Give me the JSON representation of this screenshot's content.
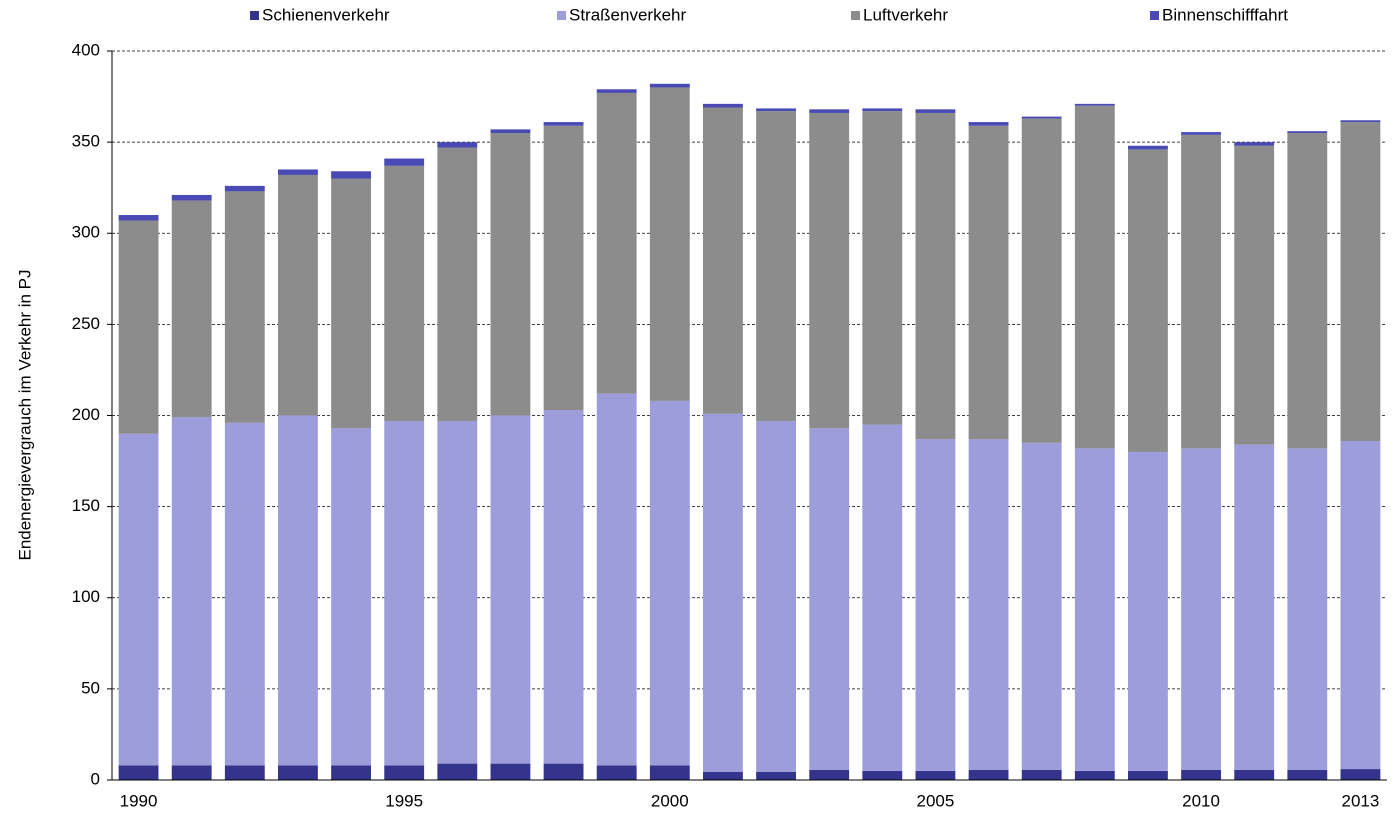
{
  "chart_data": {
    "type": "stacked-bar",
    "y_label": "Endenergievergrauch im Verkehr in PJ",
    "categories": [
      "1990",
      null,
      null,
      null,
      null,
      "1995",
      null,
      null,
      null,
      null,
      "2000",
      null,
      null,
      null,
      null,
      "2005",
      null,
      null,
      null,
      null,
      "2010",
      null,
      null,
      "2013"
    ],
    "series": [
      {
        "name": "Schienenverkehr",
        "color": "#34348c",
        "values": [
          8,
          8,
          8,
          8,
          8,
          8,
          9,
          9,
          9,
          8,
          8,
          4.5,
          4.5,
          5.5,
          5,
          5,
          5.5,
          5.5,
          5,
          5,
          5.5,
          5.5,
          5.5,
          6
        ]
      },
      {
        "name": "Straßenverkehr",
        "color": "#9d9ddc",
        "values": [
          182,
          191,
          188,
          192,
          185,
          189,
          188,
          191,
          194,
          204,
          200,
          196.5,
          192.5,
          187.5,
          190,
          182,
          181.5,
          179.5,
          177,
          175,
          176.5,
          178.5,
          176.5,
          180
        ]
      },
      {
        "name": "Luftverkehr",
        "color": "#8c8c8c",
        "values": [
          117,
          119,
          127,
          132,
          137,
          140,
          150,
          155,
          156,
          165,
          172,
          168,
          170,
          173,
          172,
          179,
          172,
          178,
          188,
          166,
          172,
          164,
          173,
          175
        ]
      },
      {
        "name": "Binnenschifffahrt",
        "color": "#4a4ab4",
        "values": [
          3,
          3,
          3,
          3,
          4,
          4,
          3,
          2,
          2,
          2,
          2,
          2,
          1.5,
          2,
          1.5,
          2,
          2,
          1,
          1,
          2,
          1.5,
          2,
          1,
          1
        ]
      }
    ],
    "ylim": [
      0,
      400
    ],
    "yticks": [
      0,
      50,
      100,
      150,
      200,
      250,
      300,
      350,
      400
    ],
    "grid": true,
    "legend": "top"
  }
}
